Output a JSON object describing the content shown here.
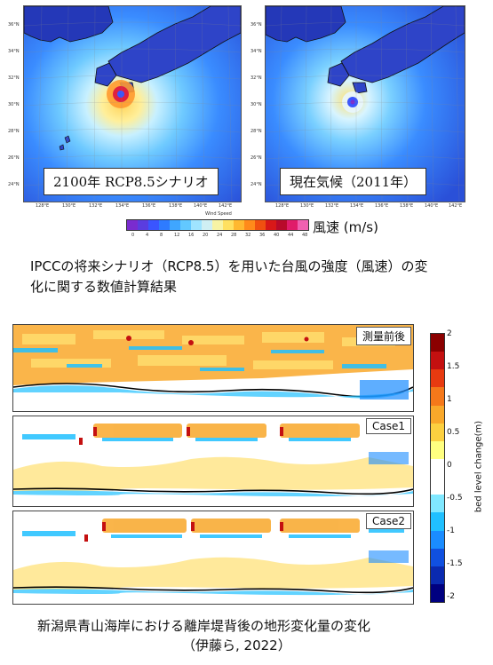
{
  "maps": {
    "left": {
      "label": "2100年 RCP8.5シナリオ"
    },
    "right": {
      "label": "現在気候（2011年）"
    },
    "lat_labels_left": [
      "36°N",
      "34°N",
      "32°N",
      "30°N",
      "28°N",
      "26°N",
      "24°N"
    ],
    "lat_labels_right": [
      "36°N",
      "34°N",
      "32°N",
      "30°N",
      "28°N",
      "26°N",
      "24°N"
    ],
    "lon_labels_left": [
      "128°E",
      "130°E",
      "132°E",
      "134°E",
      "136°E",
      "138°E",
      "140°E",
      "142°E"
    ],
    "lon_labels_right": [
      "128°E",
      "130°E",
      "132°E",
      "134°E",
      "136°E",
      "138°E",
      "140°E",
      "142°E"
    ]
  },
  "wind_colorbar": {
    "title": "Wind Speed",
    "ticks": [
      "0",
      "4",
      "8",
      "12",
      "16",
      "20",
      "24",
      "28",
      "32",
      "36",
      "40",
      "44",
      "48"
    ],
    "unit_label": "風速 (m/s)",
    "colors": [
      "#7a2ccf",
      "#5a3de0",
      "#3a55ff",
      "#2e7bff",
      "#3fa6ff",
      "#62c8ff",
      "#9fe4ff",
      "#cfeff3",
      "#f7f3a5",
      "#ffe060",
      "#ffb830",
      "#ff8a1a",
      "#f05010",
      "#d81818",
      "#b80a2a",
      "#e01c6a",
      "#f060b0"
    ]
  },
  "caption_top": {
    "line1": "IPCCの将来シナリオ（RCP8.5）を用いた台風の強度（風速）の変",
    "line2": "化に関する数値計算結果"
  },
  "panels": [
    {
      "label": "測量前後"
    },
    {
      "label": "Case1"
    },
    {
      "label": "Case2"
    }
  ],
  "bed_colorbar": {
    "ticks": [
      "2",
      "1.5",
      "1",
      "0.5",
      "0",
      "-0.5",
      "-1",
      "-1.5",
      "-2"
    ],
    "axis_label": "bed level change(m)",
    "colors": [
      "#8b0000",
      "#c41010",
      "#e83a10",
      "#f5781a",
      "#f9a82a",
      "#fcd040",
      "#ffff80",
      "#ffffff",
      "#ffffff",
      "#80e8ff",
      "#20c0ff",
      "#1a8cff",
      "#1050e0",
      "#0a2ab0",
      "#000080"
    ]
  },
  "caption_bottom": {
    "line1": "新潟県青山海岸における離岸堤背後の地形変化量の変化",
    "line2": "（伊藤ら, 2022）"
  }
}
